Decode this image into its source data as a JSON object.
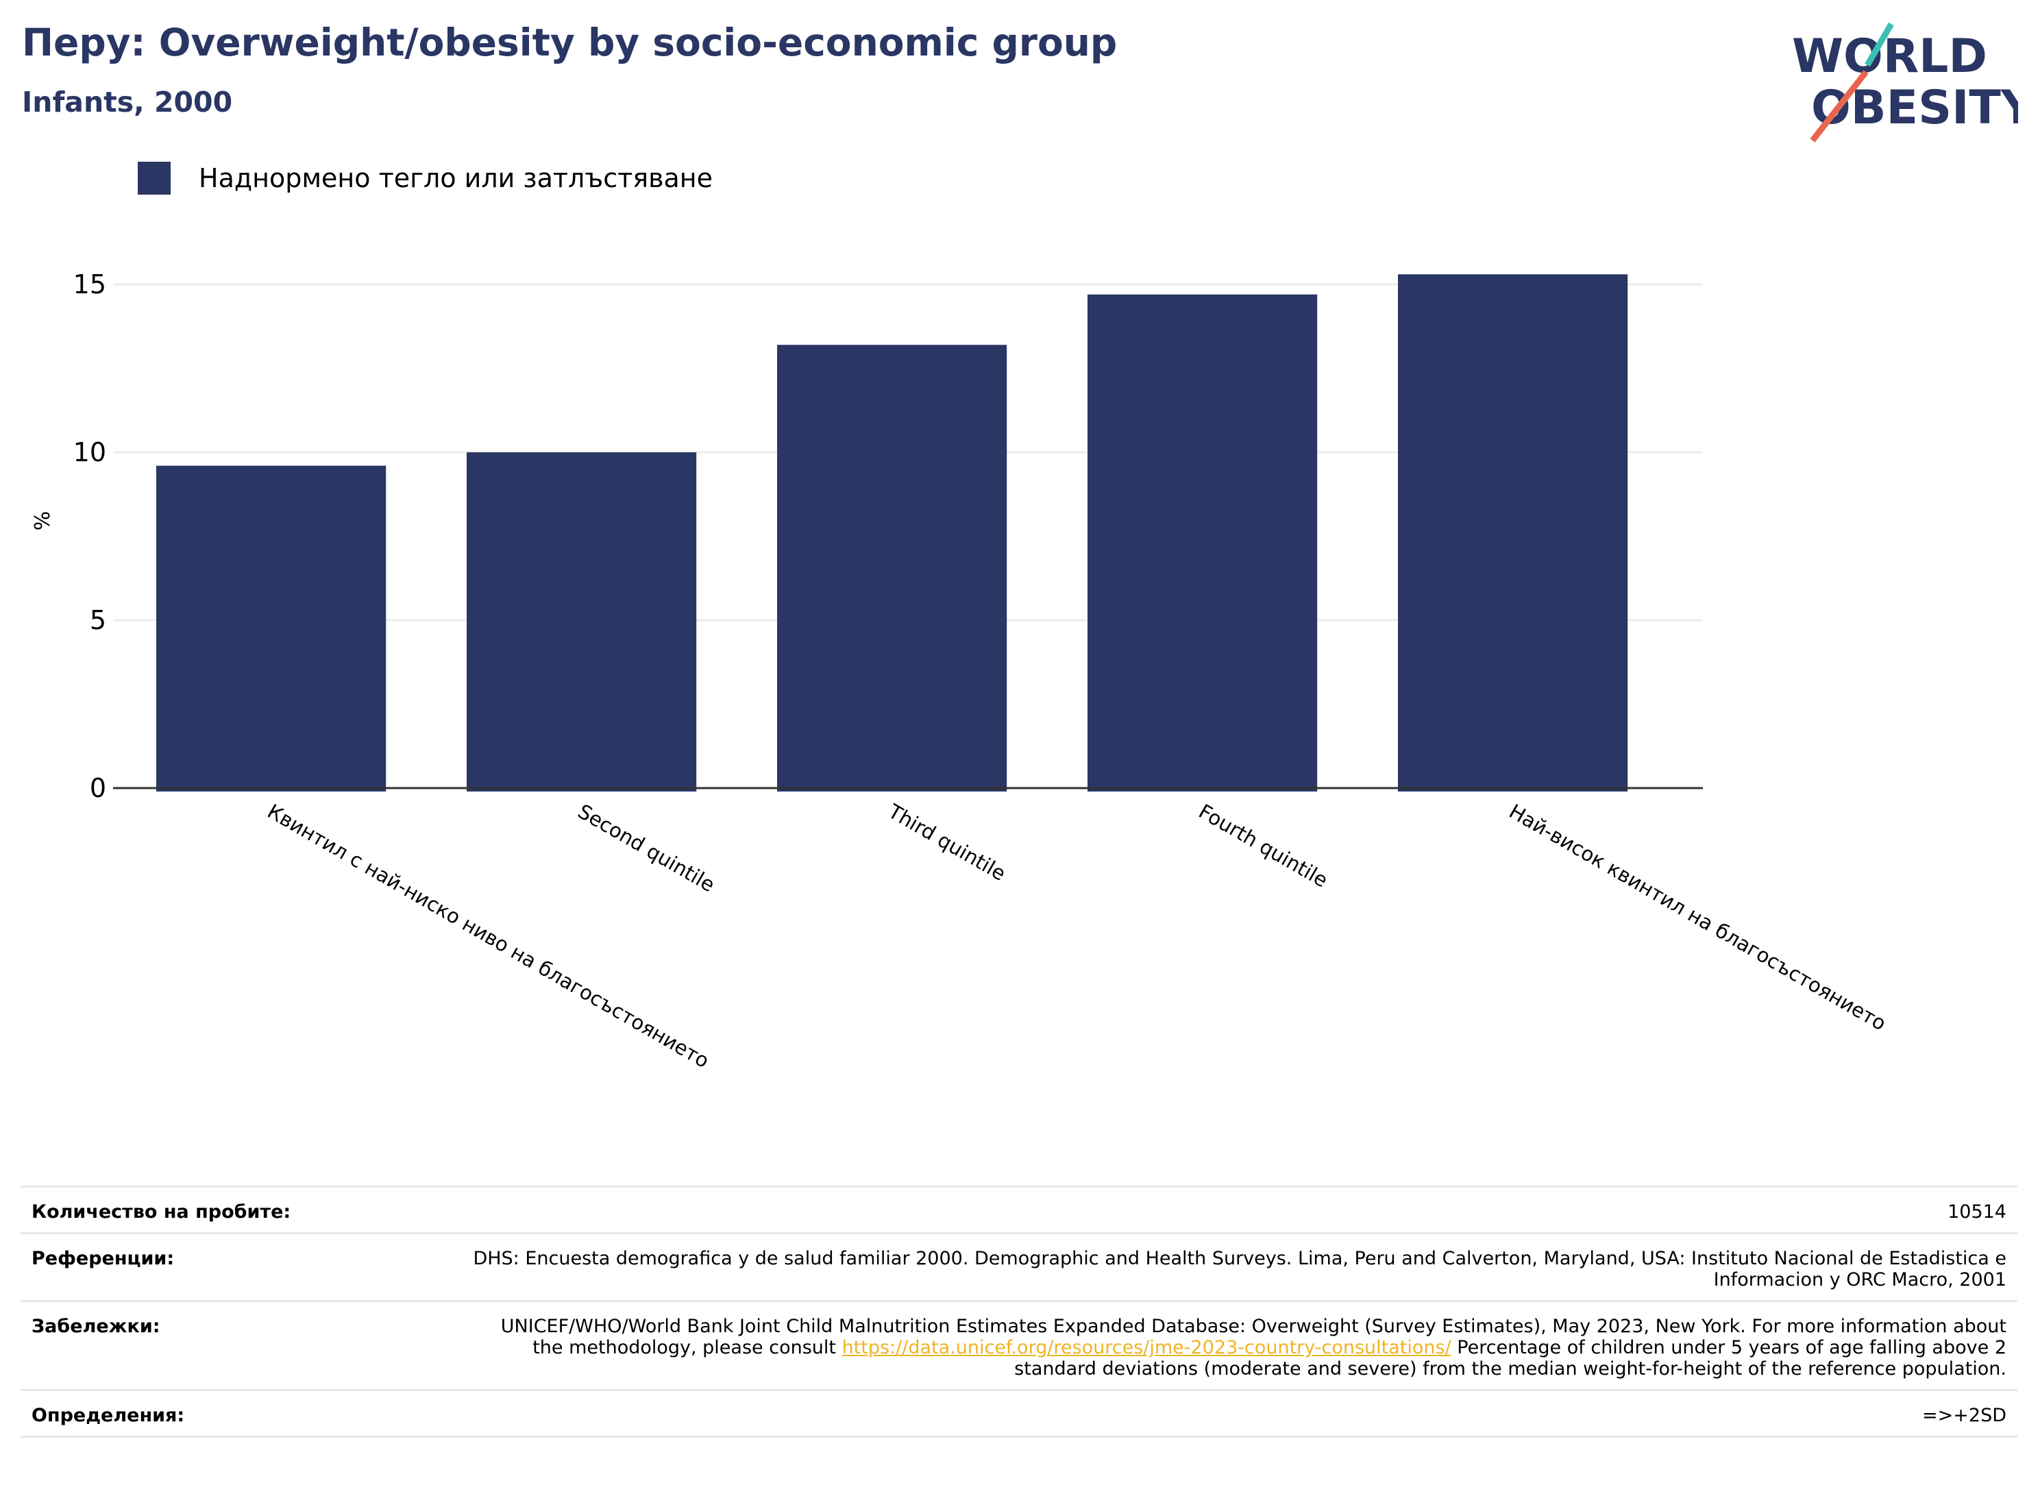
{
  "title": "Перу: Overweight/obesity by socio-economic group",
  "subtitle": "Infants, 2000",
  "logo": {
    "line1": "WORLD",
    "line2": "OBESITY",
    "colors": {
      "text": "#2a3663",
      "teal": "#3cbfb4",
      "coral": "#e8664e"
    }
  },
  "colors": {
    "bar": "#2a3663",
    "grid": "#ebebeb",
    "axis": "#333333",
    "text": "#000000",
    "link": "#f0b323"
  },
  "chart_data": {
    "type": "bar",
    "categories": [
      "Квинтил с най-ниско ниво на благосъстоянието",
      "Second quintile",
      "Third quintile",
      "Fourth quintile",
      "Най-висок квинтил на благосъстоянието"
    ],
    "series": [
      {
        "name": "Наднормено тегло или затлъстяване",
        "values": [
          9.6,
          10.0,
          13.2,
          14.7,
          15.3
        ]
      }
    ],
    "ylabel": "%",
    "ylim": [
      0,
      15
    ],
    "yticks": [
      0,
      5,
      10,
      15
    ],
    "grid": true,
    "legend": "top-left"
  },
  "footer": {
    "sample_size": {
      "label": "Количество на пробите:",
      "value": "10514"
    },
    "references": {
      "label": "Референции:",
      "value": "DHS: Encuesta demografica y de salud familiar 2000. Demographic and Health Surveys. Lima, Peru and Calverton, Maryland, USA: Instituto Nacional de Estadistica e Informacion y ORC Macro, 2001"
    },
    "notes": {
      "label": "Забележки:",
      "text_before": "UNICEF/WHO/World Bank Joint Child Malnutrition Estimates Expanded Database: Overweight (Survey Estimates), May 2023, New York. For more information about the methodology, please consult ",
      "link": "https://data.unicef.org/resources/jme-2023-country-consultations/",
      "text_after": " Percentage of children under 5 years of age falling above 2 standard deviations (moderate and severe) from the median weight-for-height of the reference population."
    },
    "definitions": {
      "label": "Определения:",
      "value": "=>+2SD"
    }
  }
}
